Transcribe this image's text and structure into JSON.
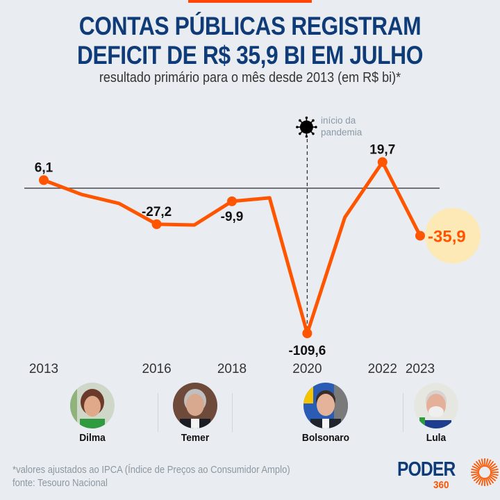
{
  "header": {
    "title_line1": "CONTAS PÚBLICAS REGISTRAM",
    "title_line2": "DEFICIT DE R$ 35,9 BI EM JULHO",
    "subtitle": "resultado primário para o mês desde 2013 (em R$ bi)*"
  },
  "annotation": {
    "icon": "virus-icon",
    "line1": "início da",
    "line2": "pandemia",
    "year": 2020
  },
  "presidents": [
    {
      "name": "Dilma",
      "icon": "portrait-dilma"
    },
    {
      "name": "Temer",
      "icon": "portrait-temer"
    },
    {
      "name": "Bolsonaro",
      "icon": "portrait-bolsonaro"
    },
    {
      "name": "Lula",
      "icon": "portrait-lula"
    }
  ],
  "footer": {
    "note": "*valores ajustados ao IPCA (Índice de Preços ao Consumidor Amplo)",
    "source": "fonte: Tesouro Nacional",
    "logo_main": "PODER",
    "logo_sub": "360"
  },
  "colors": {
    "line": "#ff5500",
    "title": "#0f3c78",
    "highlight": "#fde9b6",
    "background": "#e9edf1"
  },
  "chart_data": {
    "type": "line",
    "title": "CONTAS PÚBLICAS REGISTRAM DEFICIT DE R$ 35,9 BI EM JULHO",
    "subtitle": "resultado primário para o mês desde 2013 (em R$ bi)*",
    "xlabel": "",
    "ylabel": "R$ bi",
    "x": [
      2013,
      2014,
      2015,
      2016,
      2017,
      2018,
      2019,
      2020,
      2021,
      2022,
      2023
    ],
    "values": [
      6.1,
      -4.7,
      -11.5,
      -27.2,
      -27.8,
      -9.9,
      -7.3,
      -109.6,
      -22.0,
      19.7,
      -35.9
    ],
    "labeled_points": [
      {
        "x": 2013,
        "label": "6,1",
        "pos": "above"
      },
      {
        "x": 2016,
        "label": "-27,2",
        "pos": "above"
      },
      {
        "x": 2018,
        "label": "-9,9",
        "pos": "below"
      },
      {
        "x": 2020,
        "label": "-109,6",
        "pos": "below"
      },
      {
        "x": 2022,
        "label": "19,7",
        "pos": "above"
      },
      {
        "x": 2023,
        "label": "-35,9",
        "pos": "right-highlight"
      }
    ],
    "tick_labels": [
      {
        "x": 2013,
        "label": "2013"
      },
      {
        "x": 2016,
        "label": "2016"
      },
      {
        "x": 2018,
        "label": "2018"
      },
      {
        "x": 2020,
        "label": "2020"
      },
      {
        "x": 2022,
        "label": "2022"
      },
      {
        "x": 2023,
        "label": "2023"
      }
    ],
    "reference_line": 0,
    "ylim": [
      -109.6,
      19.7
    ],
    "grid": false,
    "legend": "none"
  }
}
